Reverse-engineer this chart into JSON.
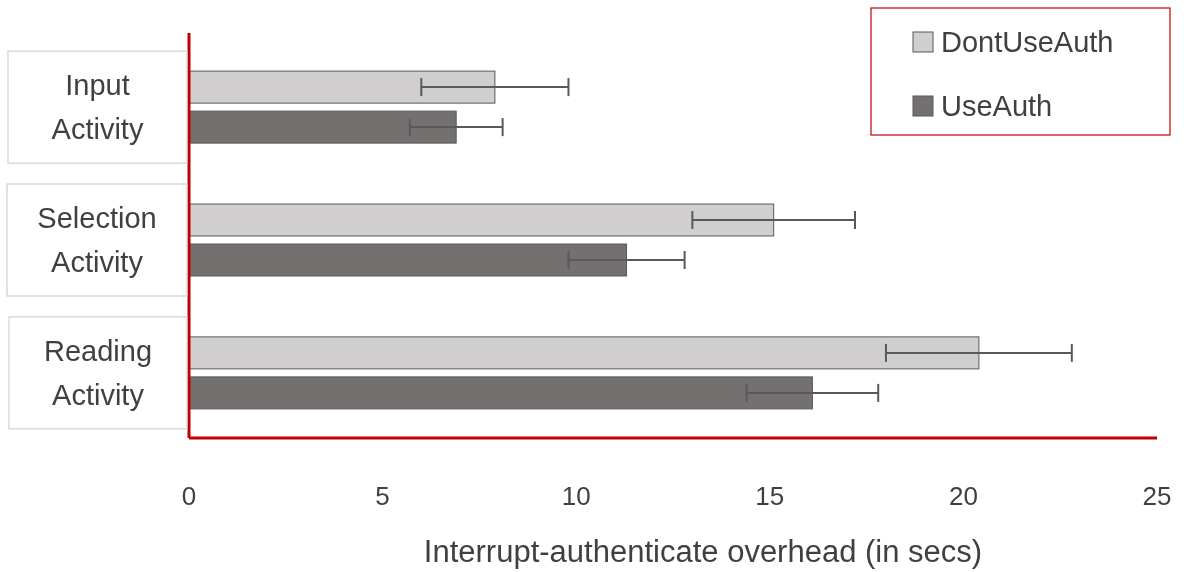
{
  "chart_data": {
    "type": "bar",
    "orientation": "horizontal",
    "categories": [
      "Input Activity",
      "Selection Activity",
      "Reading Activity"
    ],
    "series": [
      {
        "name": "DontUseAuth",
        "color": "#d0cece",
        "values": [
          7.9,
          15.1,
          20.4
        ],
        "errors": [
          1.9,
          2.1,
          2.4
        ]
      },
      {
        "name": "UseAuth",
        "color": "#757070",
        "values": [
          6.9,
          11.3,
          16.1
        ],
        "errors": [
          1.2,
          1.5,
          1.7
        ]
      }
    ],
    "xlim": [
      0,
      25
    ],
    "xticks": [
      0,
      5,
      10,
      15,
      20,
      25
    ],
    "xlabel": "Interrupt-authenticate overhead (in secs)",
    "legend": "top right",
    "grid": false
  }
}
